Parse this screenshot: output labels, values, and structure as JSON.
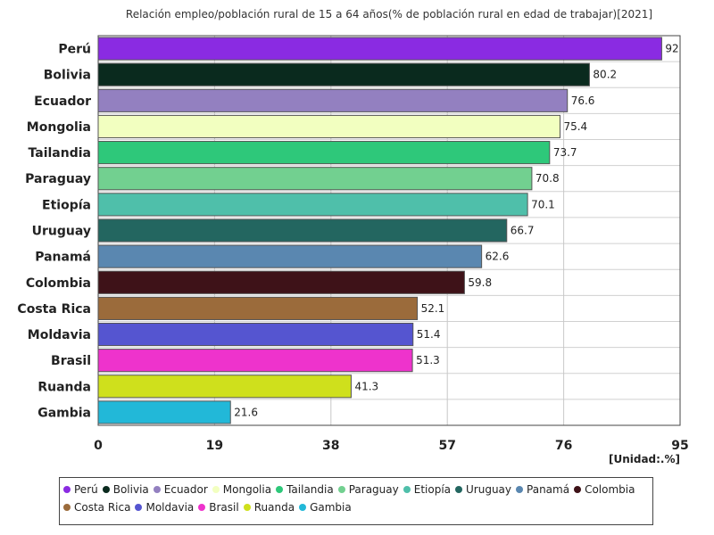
{
  "chart_data": {
    "type": "bar",
    "orientation": "horizontal",
    "title": "Relación empleo/población rural de 15 a 64 años(% de población rural en edad de trabajar)[2021]",
    "unit_label": "[Unidad:.%]",
    "categories": [
      "Perú",
      "Bolivia",
      "Ecuador",
      "Mongolia",
      "Tailandia",
      "Paraguay",
      "Etiopía",
      "Uruguay",
      "Panamá",
      "Colombia",
      "Costa Rica",
      "Moldavia",
      "Brasil",
      "Ruanda",
      "Gambia"
    ],
    "values": [
      92,
      80.2,
      76.6,
      75.4,
      73.7,
      70.8,
      70.1,
      66.7,
      62.6,
      59.8,
      52.1,
      51.4,
      51.3,
      41.3,
      21.6
    ],
    "value_labels": [
      "92",
      "80.2",
      "76.6",
      "75.4",
      "73.7",
      "70.8",
      "70.1",
      "66.7",
      "62.6",
      "59.8",
      "52.1",
      "51.4",
      "51.3",
      "41.3",
      "21.6"
    ],
    "colors": [
      "#8a2be2",
      "#0a2a1e",
      "#9380c0",
      "#f2ffc0",
      "#2ec87a",
      "#72d090",
      "#4fbfaa",
      "#236660",
      "#5a87b0",
      "#3e1218",
      "#9b6b3b",
      "#5555d0",
      "#ee33cc",
      "#cfe01c",
      "#22b8d8"
    ],
    "xlim": [
      0,
      95
    ],
    "xticks": [
      "0",
      "19",
      "38",
      "57",
      "76",
      "95"
    ],
    "grid": true,
    "legend_position": "bottom"
  }
}
